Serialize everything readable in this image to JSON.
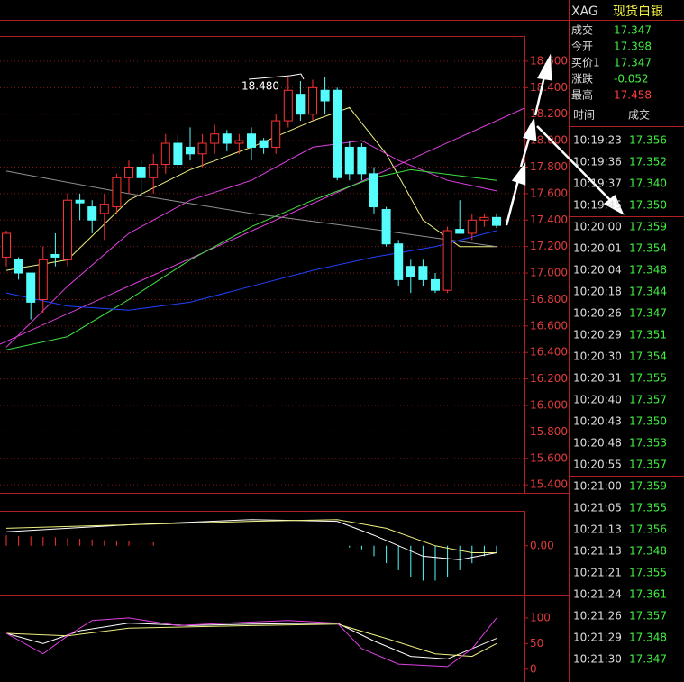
{
  "chart_data": [
    {
      "type": "candlestick",
      "annotation": "18.480",
      "open": [
        17.12,
        17.1,
        17.0,
        16.8,
        17.14,
        17.1,
        17.55,
        17.5,
        17.45,
        17.5,
        17.72,
        17.8,
        17.72,
        17.82,
        17.98,
        17.95,
        17.9,
        17.98,
        18.05,
        17.98,
        18.05,
        18.0,
        17.95,
        18.15,
        18.35,
        18.2,
        18.38,
        18.38,
        17.95,
        17.95,
        17.75,
        17.48,
        17.22,
        17.05,
        17.05,
        16.95,
        16.87,
        17.33,
        17.3,
        17.4,
        17.42
      ],
      "high": [
        17.32,
        17.12,
        17.0,
        17.2,
        17.3,
        17.6,
        17.6,
        17.55,
        17.6,
        17.75,
        17.85,
        17.85,
        17.9,
        18.05,
        18.05,
        18.1,
        18.05,
        18.12,
        18.08,
        18.05,
        18.1,
        18.02,
        18.2,
        18.48,
        18.45,
        18.46,
        18.48,
        18.4,
        18.0,
        17.98,
        17.8,
        17.5,
        17.25,
        17.1,
        17.1,
        17.0,
        17.35,
        17.55,
        17.45,
        17.45,
        17.45
      ],
      "low": [
        17.05,
        16.95,
        16.65,
        16.7,
        17.05,
        17.05,
        17.4,
        17.3,
        17.25,
        17.45,
        17.6,
        17.6,
        17.6,
        17.75,
        17.8,
        17.85,
        17.8,
        17.9,
        17.92,
        17.9,
        17.85,
        17.9,
        17.9,
        18.1,
        18.15,
        18.15,
        18.2,
        17.7,
        17.7,
        17.7,
        17.45,
        17.2,
        16.9,
        16.85,
        16.9,
        16.85,
        16.85,
        17.3,
        17.25,
        17.35,
        17.34
      ],
      "close": [
        17.3,
        17.0,
        16.78,
        17.1,
        17.12,
        17.55,
        17.53,
        17.4,
        17.52,
        17.72,
        17.8,
        17.72,
        17.82,
        17.98,
        17.82,
        17.9,
        17.98,
        18.05,
        17.98,
        18.0,
        17.95,
        17.95,
        18.15,
        18.38,
        18.2,
        18.4,
        18.3,
        17.72,
        17.75,
        17.75,
        17.5,
        17.22,
        16.95,
        16.97,
        16.95,
        16.87,
        17.32,
        17.3,
        17.4,
        17.42,
        17.36
      ],
      "series": [
        {
          "color": "#f0f080",
          "x": [
            0,
            5,
            10,
            15,
            20,
            25,
            28,
            31,
            34,
            37,
            40
          ],
          "values": [
            17.02,
            17.1,
            17.55,
            17.78,
            17.95,
            18.15,
            18.25,
            17.9,
            17.4,
            17.2,
            17.2
          ]
        },
        {
          "color": "#e040e0",
          "x": [
            0,
            5,
            10,
            15,
            20,
            25,
            29,
            32,
            36,
            40
          ],
          "values": [
            16.44,
            16.9,
            17.3,
            17.55,
            17.7,
            17.95,
            18.0,
            17.85,
            17.7,
            17.62
          ]
        },
        {
          "color": "#40e040",
          "x": [
            0,
            5,
            10,
            15,
            20,
            25,
            30,
            33,
            40
          ],
          "values": [
            16.42,
            16.52,
            16.8,
            17.1,
            17.35,
            17.55,
            17.72,
            17.78,
            17.7
          ]
        },
        {
          "color": "#2040ff",
          "x": [
            0,
            5,
            10,
            15,
            20,
            25,
            30,
            35,
            40
          ],
          "values": [
            16.85,
            16.75,
            16.72,
            16.78,
            16.9,
            17.02,
            17.12,
            17.2,
            17.32
          ]
        },
        {
          "color": "#909090",
          "x": [
            0,
            10,
            20,
            30,
            40
          ],
          "values": [
            17.77,
            17.6,
            17.45,
            17.33,
            17.2
          ]
        }
      ],
      "ylim": [
        15.34,
        18.79
      ],
      "yticks": [
        {
          "value": 18.6,
          "label": "18.600"
        },
        {
          "value": 18.4,
          "label": "18.400"
        },
        {
          "value": 18.2,
          "label": "18.200"
        },
        {
          "value": 18.0,
          "label": "18.000"
        },
        {
          "value": 17.8,
          "label": "17.800"
        },
        {
          "value": 17.6,
          "label": "17.600"
        },
        {
          "value": 17.4,
          "label": "17.400"
        },
        {
          "value": 17.2,
          "label": "17.200"
        },
        {
          "value": 17.0,
          "label": "17.000"
        },
        {
          "value": 16.8,
          "label": "16.800"
        },
        {
          "value": 16.6,
          "label": "16.600"
        },
        {
          "value": 16.4,
          "label": "16.400"
        },
        {
          "value": 16.2,
          "label": "16.200"
        },
        {
          "value": 16.0,
          "label": "16.000"
        },
        {
          "value": 15.8,
          "label": "15.800"
        },
        {
          "value": 15.6,
          "label": "15.600"
        },
        {
          "value": 15.4,
          "label": "15.400"
        }
      ],
      "grid": true
    },
    {
      "type": "bar",
      "values": [
        0.03,
        0.028,
        0.027,
        0.025,
        0.024,
        0.022,
        0.02,
        0.018,
        0.016,
        0.015,
        0.013,
        0.012,
        0.01,
        0,
        0,
        0,
        0,
        0,
        0,
        0,
        0,
        0,
        0,
        0,
        0,
        0,
        0,
        0,
        -0.005,
        -0.01,
        -0.03,
        -0.05,
        -0.07,
        -0.09,
        -0.1,
        -0.1,
        -0.09,
        -0.07,
        -0.05,
        -0.03,
        -0.02
      ],
      "up_color": "#ff3232",
      "down_color": "#54fcfc",
      "series": [
        {
          "color": "#ffffff",
          "x": [
            0,
            10,
            20,
            27,
            30,
            34,
            37,
            40
          ],
          "values": [
            0.04,
            0.06,
            0.075,
            0.07,
            0.03,
            -0.03,
            -0.04,
            -0.02
          ]
        },
        {
          "color": "#f0f080",
          "x": [
            0,
            10,
            20,
            27,
            31,
            35,
            38,
            40
          ],
          "values": [
            0.05,
            0.06,
            0.07,
            0.075,
            0.05,
            0.0,
            -0.02,
            -0.02
          ]
        }
      ],
      "ylim": [
        -0.14,
        0.1
      ],
      "yticks": [
        {
          "value": 0,
          "label": "0.00"
        }
      ]
    },
    {
      "type": "line",
      "series": [
        {
          "color": "#ffffff",
          "x": [
            0,
            3,
            6,
            10,
            15,
            20,
            27,
            30,
            33,
            36,
            40
          ],
          "values": [
            70,
            50,
            75,
            90,
            85,
            88,
            90,
            55,
            25,
            20,
            60
          ]
        },
        {
          "color": "#f0f080",
          "x": [
            0,
            5,
            10,
            20,
            27,
            31,
            35,
            38,
            40
          ],
          "values": [
            70,
            65,
            80,
            85,
            88,
            60,
            30,
            25,
            50
          ]
        },
        {
          "color": "#e040e0",
          "x": [
            0,
            3,
            5,
            7,
            10,
            14,
            18,
            23,
            27,
            29,
            32,
            36,
            38,
            40
          ],
          "values": [
            70,
            30,
            65,
            95,
            100,
            85,
            90,
            95,
            90,
            40,
            10,
            5,
            40,
            100
          ]
        }
      ],
      "ylim": [
        -25,
        142
      ],
      "yticks": [
        100,
        50,
        0
      ]
    }
  ],
  "header": {
    "symbol": "XAG",
    "name": "现货白银"
  },
  "quote": {
    "rows": [
      [
        "成交",
        "17.347"
      ],
      [
        "今开",
        "17.398"
      ],
      [
        "买价1",
        "17.347"
      ],
      [
        "涨跌",
        "-0.052"
      ],
      [
        "最高",
        "17.458"
      ]
    ]
  },
  "trades": {
    "columns": [
      "时间",
      "成交"
    ],
    "rows": [
      [
        "10:19:23",
        "17.356"
      ],
      [
        "10:19:36",
        "17.352"
      ],
      [
        "10:19:37",
        "17.340"
      ],
      [
        "10:19:45",
        "17.350"
      ],
      [
        "10:20:00",
        "17.359"
      ],
      [
        "10:20:01",
        "17.354"
      ],
      [
        "10:20:04",
        "17.348"
      ],
      [
        "10:20:18",
        "17.344"
      ],
      [
        "10:20:26",
        "17.347"
      ],
      [
        "10:20:29",
        "17.351"
      ],
      [
        "10:20:30",
        "17.354"
      ],
      [
        "10:20:31",
        "17.355"
      ],
      [
        "10:20:40",
        "17.357"
      ],
      [
        "10:20:43",
        "17.350"
      ],
      [
        "10:20:48",
        "17.353"
      ],
      [
        "10:20:55",
        "17.357"
      ],
      [
        "10:21:00",
        "17.359"
      ],
      [
        "10:21:05",
        "17.355"
      ],
      [
        "10:21:13",
        "17.356"
      ],
      [
        "10:21:13",
        "17.348"
      ],
      [
        "10:21:21",
        "17.355"
      ],
      [
        "10:21:24",
        "17.361"
      ],
      [
        "10:21:26",
        "17.357"
      ],
      [
        "10:21:29",
        "17.348"
      ],
      [
        "10:21:30",
        "17.347"
      ]
    ]
  }
}
